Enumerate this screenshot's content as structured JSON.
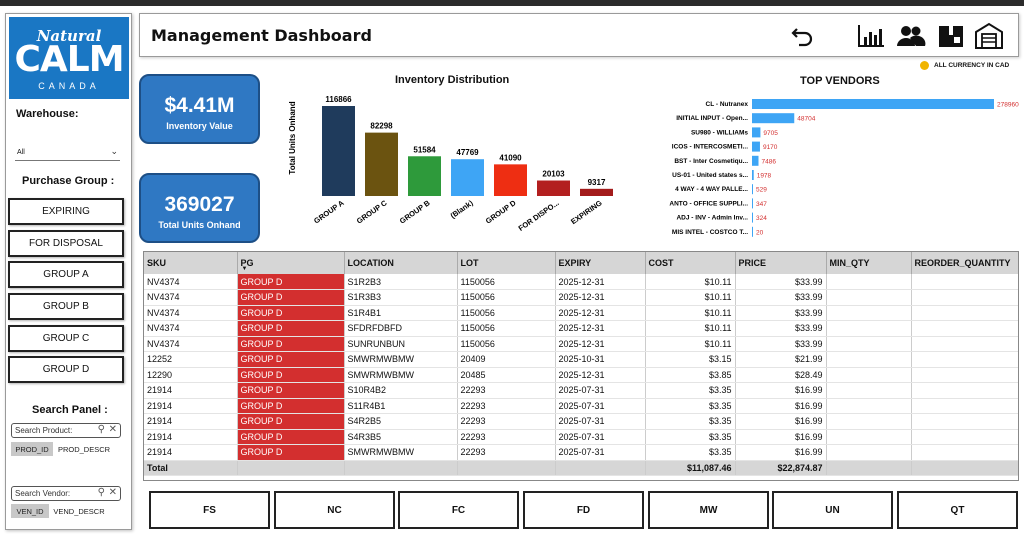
{
  "logo": {
    "line1": "Natural",
    "line2": "CALM",
    "line3": "CANADA"
  },
  "sidebar": {
    "warehouse_label": "Warehouse:",
    "warehouse_value": "All",
    "purchase_group_label": "Purchase Group :",
    "purchase_groups": [
      "EXPIRING",
      "FOR DISPOSAL",
      "GROUP A",
      "GROUP B",
      "GROUP C",
      "GROUP D"
    ],
    "search_panel_label": "Search Panel :",
    "search_product": {
      "placeholder": "Search Product:",
      "chip_selected": "PROD_ID",
      "chip_other": "PROD_DESCR"
    },
    "search_vendor": {
      "placeholder": "Search Vendor:",
      "chip_selected": "VEN_ID",
      "chip_other": "VEND_DESCR"
    }
  },
  "header": {
    "title": "Management Dashboard",
    "icons": [
      "undo-icon",
      "bar-chart-icon",
      "users-icon",
      "box-icon",
      "warehouse-icon"
    ],
    "currency_note": "ALL CURRENCY IN CAD"
  },
  "kpis": {
    "inventory_value": "$4.41M",
    "inventory_value_label": "Inventory Value",
    "units_onhand": "369027",
    "units_onhand_label": "Total Units  Onhand"
  },
  "chart_data": [
    {
      "type": "bar",
      "title": "Inventory Distribution",
      "ylabel": "Total Units Onhand",
      "xlabel": "",
      "categories": [
        "GROUP A",
        "GROUP C",
        "GROUP B",
        "(Blank)",
        "GROUP D",
        "FOR DISPO...",
        "EXPIRING"
      ],
      "values": [
        116866,
        82298,
        51584,
        47769,
        41090,
        20103,
        9317
      ],
      "colors": [
        "#1f3b5c",
        "#6b5310",
        "#2e9a3b",
        "#3ea5f5",
        "#ee2e12",
        "#b31f1f",
        "#a31b1b"
      ]
    },
    {
      "type": "bar",
      "orientation": "horizontal",
      "title": "TOP VENDORS",
      "categories": [
        "CL - Nutranex",
        "INITIAL INPUT - Open...",
        "SU980 - WILLIAMs",
        "ICOS - INTERCOSMETI...",
        "BST - Inter Cosmetiqu...",
        "US-01 - United states s...",
        "4 WAY - 4 WAY PALLE...",
        "ANTO - OFFICE SUPPLI...",
        "ADJ - INV - Admin Inv...",
        "MIS INTEL - COSTCO T..."
      ],
      "values": [
        278960,
        48704,
        9705,
        9170,
        7486,
        1978,
        529,
        347,
        324,
        20
      ],
      "bar_color": "#3ea5f5",
      "label_color": "#d32f2f"
    }
  ],
  "table": {
    "columns": [
      "SKU",
      "PG",
      "LOCATION",
      "LOT",
      "EXPIRY",
      "COST",
      "PRICE",
      "MIN_QTY",
      "REORDER_QUANTITY"
    ],
    "rows": [
      [
        "NV4374",
        "GROUP D",
        "S1R2B3",
        "1150056",
        "2025-12-31",
        "$10.11",
        "$33.99",
        "",
        ""
      ],
      [
        "NV4374",
        "GROUP D",
        "S1R3B3",
        "1150056",
        "2025-12-31",
        "$10.11",
        "$33.99",
        "",
        ""
      ],
      [
        "NV4374",
        "GROUP D",
        "S1R4B1",
        "1150056",
        "2025-12-31",
        "$10.11",
        "$33.99",
        "",
        ""
      ],
      [
        "NV4374",
        "GROUP D",
        "SFDRFDBFD",
        "1150056",
        "2025-12-31",
        "$10.11",
        "$33.99",
        "",
        ""
      ],
      [
        "NV4374",
        "GROUP D",
        "SUNRUNBUN",
        "1150056",
        "2025-12-31",
        "$10.11",
        "$33.99",
        "",
        ""
      ],
      [
        "12252",
        "GROUP D",
        "SMWRMWBMW",
        "20409",
        "2025-10-31",
        "$3.15",
        "$21.99",
        "",
        ""
      ],
      [
        "12290",
        "GROUP D",
        "SMWRMWBMW",
        "20485",
        "2025-12-31",
        "$3.85",
        "$28.49",
        "",
        ""
      ],
      [
        "21914",
        "GROUP D",
        "S10R4B2",
        "22293",
        "2025-07-31",
        "$3.35",
        "$16.99",
        "",
        ""
      ],
      [
        "21914",
        "GROUP D",
        "S11R4B1",
        "22293",
        "2025-07-31",
        "$3.35",
        "$16.99",
        "",
        ""
      ],
      [
        "21914",
        "GROUP D",
        "S4R2B5",
        "22293",
        "2025-07-31",
        "$3.35",
        "$16.99",
        "",
        ""
      ],
      [
        "21914",
        "GROUP D",
        "S4R3B5",
        "22293",
        "2025-07-31",
        "$3.35",
        "$16.99",
        "",
        ""
      ],
      [
        "21914",
        "GROUP D",
        "SMWRMWBMW",
        "22293",
        "2025-07-31",
        "$3.35",
        "$16.99",
        "",
        ""
      ]
    ],
    "total_label": "Total",
    "total_cost": "$11,087.46",
    "total_price": "$22,874.87"
  },
  "bottom_buttons": [
    "FS",
    "NC",
    "FC",
    "FD",
    "MW",
    "UN",
    "QT"
  ]
}
